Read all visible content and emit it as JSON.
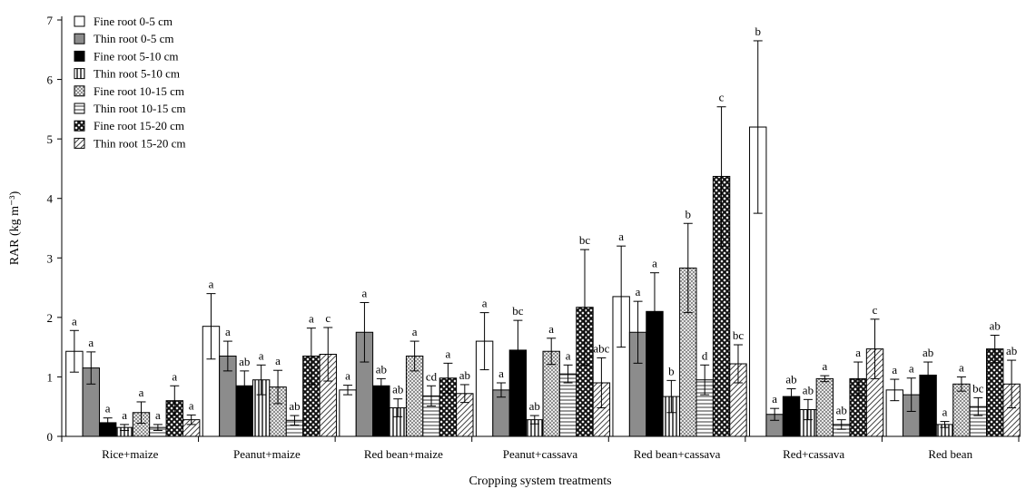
{
  "chart_data": {
    "type": "bar",
    "title": "",
    "xlabel": "Cropping system treatments",
    "ylabel": "RAR (kg m⁻³)",
    "ylim": [
      0,
      7
    ],
    "yticks": [
      0,
      1,
      2,
      3,
      4,
      5,
      6,
      7
    ],
    "legend_position": "top-left",
    "categories": [
      "Rice+maize",
      "Peanut+maize",
      "Red bean+maize",
      "Peanut+cassava",
      "Red bean+cassava",
      "Red+cassava",
      "Red bean"
    ],
    "series": [
      {
        "name": "Fine root 0-5 cm",
        "pattern": "white",
        "values": [
          1.43,
          1.85,
          0.78,
          1.6,
          2.35,
          5.2,
          0.78
        ],
        "errors": [
          0.35,
          0.55,
          0.08,
          0.48,
          0.85,
          1.45,
          0.18
        ],
        "letters": [
          "a",
          "a",
          "a",
          "a",
          "a",
          "b",
          "a"
        ]
      },
      {
        "name": "Thin root 0-5 cm",
        "pattern": "gray",
        "values": [
          1.15,
          1.35,
          1.75,
          0.78,
          1.75,
          0.37,
          0.7
        ],
        "errors": [
          0.27,
          0.25,
          0.5,
          0.12,
          0.52,
          0.1,
          0.28
        ],
        "letters": [
          "a",
          "a",
          "a",
          "a",
          "a",
          "a",
          "a"
        ]
      },
      {
        "name": "Fine root 5-10 cm",
        "pattern": "black",
        "values": [
          0.23,
          0.85,
          0.85,
          1.45,
          2.1,
          0.67,
          1.03
        ],
        "errors": [
          0.08,
          0.25,
          0.12,
          0.5,
          0.65,
          0.13,
          0.22
        ],
        "letters": [
          "a",
          "ab",
          "ab",
          "bc",
          "a",
          "ab",
          "ab"
        ]
      },
      {
        "name": "Thin root 5-10 cm",
        "pattern": "vertical",
        "values": [
          0.15,
          0.95,
          0.48,
          0.28,
          0.67,
          0.45,
          0.2
        ],
        "errors": [
          0.05,
          0.25,
          0.15,
          0.07,
          0.27,
          0.17,
          0.05
        ],
        "letters": [
          "a",
          "a",
          "ab",
          "ab",
          "b",
          "ab",
          "a"
        ]
      },
      {
        "name": "Fine root 10-15 cm",
        "pattern": "crosshatch",
        "values": [
          0.4,
          0.83,
          1.35,
          1.43,
          2.83,
          0.97,
          0.88
        ],
        "errors": [
          0.18,
          0.28,
          0.25,
          0.22,
          0.75,
          0.05,
          0.12
        ],
        "letters": [
          "a",
          "a",
          "a",
          "a",
          "b",
          "a",
          "a"
        ]
      },
      {
        "name": "Thin root 10-15 cm",
        "pattern": "horizontal",
        "values": [
          0.15,
          0.27,
          0.68,
          1.05,
          0.95,
          0.2,
          0.5
        ],
        "errors": [
          0.05,
          0.08,
          0.17,
          0.15,
          0.25,
          0.08,
          0.15
        ],
        "letters": [
          "a",
          "ab",
          "cd",
          "a",
          "d",
          "ab",
          "bc"
        ]
      },
      {
        "name": "Fine root 15-20 cm",
        "pattern": "checker",
        "values": [
          0.6,
          1.35,
          0.98,
          2.17,
          4.37,
          0.97,
          1.47
        ],
        "errors": [
          0.25,
          0.47,
          0.25,
          0.97,
          1.17,
          0.28,
          0.23
        ],
        "letters": [
          "a",
          "a",
          "a",
          "bc",
          "c",
          "a",
          "ab"
        ]
      },
      {
        "name": "Thin root 15-20 cm",
        "pattern": "diagonal",
        "values": [
          0.28,
          1.38,
          0.72,
          0.9,
          1.22,
          1.47,
          0.88
        ],
        "errors": [
          0.08,
          0.45,
          0.15,
          0.42,
          0.32,
          0.5,
          0.4
        ],
        "letters": [
          "a",
          "c",
          "ab",
          "abc",
          "bc",
          "c",
          "ab"
        ]
      }
    ]
  }
}
